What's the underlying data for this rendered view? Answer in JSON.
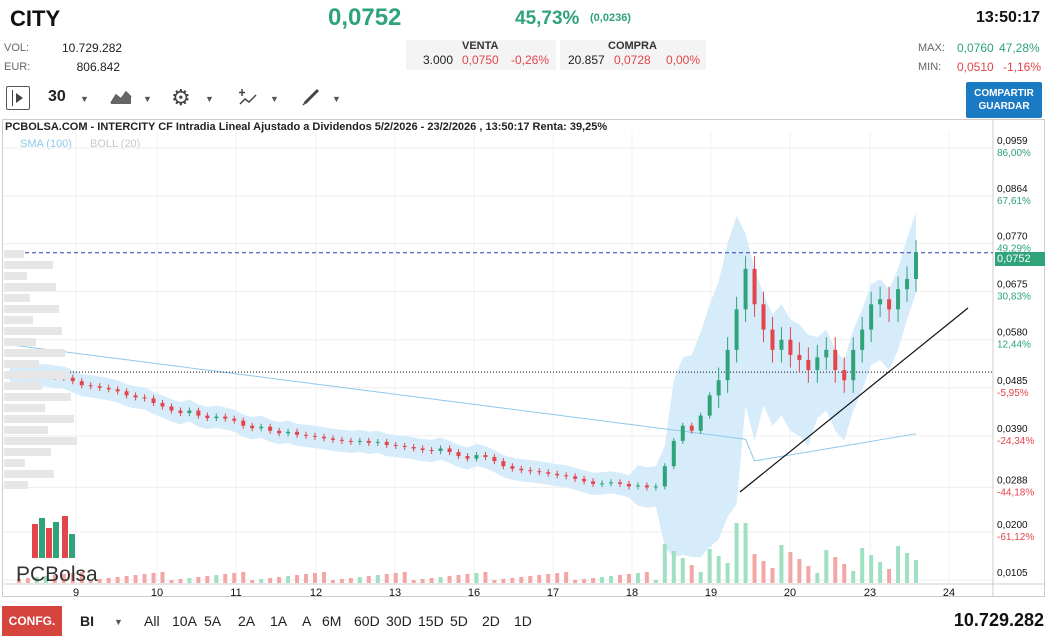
{
  "header": {
    "ticker": "CITY",
    "last_price": "0,0752",
    "change_pct": "45,73%",
    "change_abs": "(0,0236)",
    "time": "13:50:17",
    "vol_label": "VOL:",
    "vol_value": "10.729.282",
    "eur_label": "EUR:",
    "eur_value": "806.842"
  },
  "book": {
    "sell_label": "VENTA",
    "buy_label": "COMPRA",
    "sell_qty": "3.000",
    "sell_price": "0,0750",
    "sell_pct": "-0,26%",
    "buy_qty": "20.857",
    "buy_price": "0,0728",
    "buy_pct": "0,00%"
  },
  "range": {
    "max_label": "MAX:",
    "max_price": "0,0760",
    "max_pct": "47,28%",
    "min_label": "MIN:",
    "min_price": "0,0510",
    "min_pct": "-1,16%"
  },
  "toolbar": {
    "interval": "30",
    "play_icon": "play-panel-icon",
    "chart_type_icon": "area-chart-icon",
    "settings_icon": "gear-icon",
    "indicator_icon": "indicator-icon",
    "draw_icon": "pencil-icon",
    "share_line1": "COMPARTIR",
    "share_line2": "GUARDAR"
  },
  "chart_title": "PCBOLSA.COM - INTERCITY CF Intradia Lineal Ajustado a Dividendos 5/2/2026 - 23/2/2026 , 13:50:17 Renta: 39,25%",
  "legend": {
    "sma": "SMA (100)",
    "boll": "BOLL (20)"
  },
  "logo_text": "PCBolsa",
  "colors": {
    "up": "#2fa37a",
    "down": "#e2454b",
    "accent": "#1a7ac4",
    "band": "#d6ecfa",
    "sma": "#8ec9ea"
  },
  "chart_data": {
    "type": "candlestick",
    "title": "PCBOLSA.COM - INTERCITY CF Intradia Lineal Ajustado a Dividendos 5/2/2026 - 23/2/2026 , 13:50:17 Renta: 39,25%",
    "y_ticks": [
      {
        "price": "0,0959",
        "pct": "86,00%",
        "v": 0.0959
      },
      {
        "price": "0,0864",
        "pct": "67,61%",
        "v": 0.0864
      },
      {
        "price": "0,0770",
        "pct": "49,29%",
        "v": 0.077
      },
      {
        "price": "0,0675",
        "pct": "30,83%",
        "v": 0.0675
      },
      {
        "price": "0,0580",
        "pct": "12,44%",
        "v": 0.058
      },
      {
        "price": "0,0485",
        "pct": "-5,95%",
        "v": 0.0485
      },
      {
        "price": "0,0390",
        "pct": "-24,34%",
        "v": 0.039
      },
      {
        "price": "0,0288",
        "pct": "-44,18%",
        "v": 0.0288
      },
      {
        "price": "0,0200",
        "pct": "-61,12%",
        "v": 0.02
      },
      {
        "price": "0,0105",
        "pct": "",
        "v": 0.0105
      }
    ],
    "x_labels": [
      "9",
      "10",
      "11",
      "12",
      "13",
      "16",
      "17",
      "18",
      "19",
      "20",
      "23",
      "24"
    ],
    "x_positions_index": [
      1,
      2,
      3,
      4,
      5,
      6,
      7,
      8,
      9,
      10,
      11,
      12
    ],
    "current_price": "0,0752",
    "current_value": 0.0752,
    "reference_value": 0.0516,
    "ylim": [
      0.0105,
      0.1
    ],
    "close_path": [
      0.051,
      0.0509,
      0.0508,
      0.0508,
      0.051,
      0.0507,
      0.0505,
      0.0498,
      0.049,
      0.0488,
      0.0485,
      0.0482,
      0.0478,
      0.047,
      0.0466,
      0.0464,
      0.0455,
      0.0448,
      0.044,
      0.0435,
      0.044,
      0.043,
      0.0425,
      0.0428,
      0.0424,
      0.042,
      0.041,
      0.0405,
      0.0408,
      0.04,
      0.0395,
      0.0398,
      0.0392,
      0.039,
      0.0388,
      0.0385,
      0.0382,
      0.038,
      0.0378,
      0.038,
      0.0376,
      0.0378,
      0.0372,
      0.037,
      0.0368,
      0.0365,
      0.0362,
      0.036,
      0.0365,
      0.0358,
      0.035,
      0.0345,
      0.0352,
      0.0348,
      0.034,
      0.033,
      0.0325,
      0.0322,
      0.032,
      0.0318,
      0.0315,
      0.0312,
      0.031,
      0.0305,
      0.03,
      0.0295,
      0.0296,
      0.0298,
      0.0295,
      0.029,
      0.0292,
      0.0288,
      0.029,
      0.033,
      0.038,
      0.041,
      0.04,
      0.043,
      0.047,
      0.05,
      0.056,
      0.064,
      0.072,
      0.065,
      0.06,
      0.056,
      0.058,
      0.055,
      0.054,
      0.052,
      0.0545,
      0.056,
      0.052,
      0.05,
      0.056,
      0.06,
      0.065,
      0.066,
      0.064,
      0.068,
      0.07,
      0.0752
    ]
  },
  "bottom": {
    "config": "CONFG.",
    "mode": "BI",
    "ranges": [
      "All",
      "10A",
      "5A",
      "2A",
      "1A",
      "A",
      "6M",
      "60D",
      "30D",
      "15D",
      "5D",
      "2D",
      "1D"
    ],
    "volume_total": "10.729.282"
  }
}
